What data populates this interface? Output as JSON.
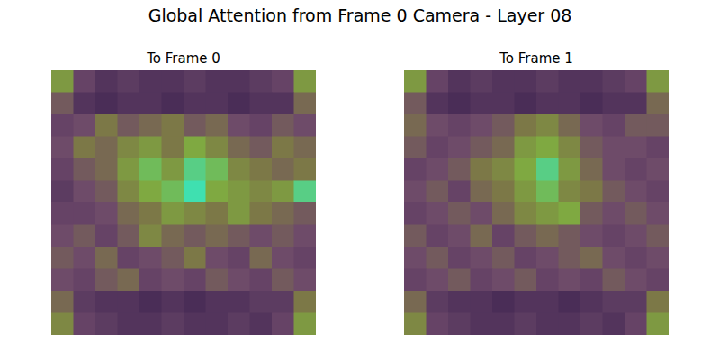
{
  "chart_data": {
    "type": "heatmap",
    "title": "Global Attention from Frame 0 Camera - Layer 08",
    "tick_labels": false,
    "panels": [
      {
        "title": "To Frame 0",
        "cells": [
          [
            0.6,
            0.3,
            0.2,
            0.25,
            0.2,
            0.2,
            0.25,
            0.2,
            0.2,
            0.25,
            0.3,
            0.6
          ],
          [
            0.4,
            0.2,
            0.15,
            0.2,
            0.2,
            0.15,
            0.2,
            0.2,
            0.15,
            0.2,
            0.2,
            0.45
          ],
          [
            0.3,
            0.35,
            0.5,
            0.4,
            0.45,
            0.5,
            0.4,
            0.45,
            0.35,
            0.3,
            0.4,
            0.35
          ],
          [
            0.35,
            0.5,
            0.45,
            0.55,
            0.6,
            0.5,
            0.65,
            0.55,
            0.45,
            0.4,
            0.5,
            0.45
          ],
          [
            0.3,
            0.4,
            0.45,
            0.6,
            0.7,
            0.6,
            0.75,
            0.7,
            0.55,
            0.5,
            0.45,
            0.5
          ],
          [
            0.25,
            0.35,
            0.4,
            0.55,
            0.65,
            0.7,
            0.8,
            0.65,
            0.6,
            0.55,
            0.6,
            0.75
          ],
          [
            0.3,
            0.3,
            0.35,
            0.45,
            0.5,
            0.6,
            0.55,
            0.5,
            0.6,
            0.5,
            0.45,
            0.4
          ],
          [
            0.35,
            0.4,
            0.3,
            0.4,
            0.55,
            0.45,
            0.4,
            0.45,
            0.4,
            0.35,
            0.4,
            0.35
          ],
          [
            0.4,
            0.35,
            0.45,
            0.3,
            0.35,
            0.4,
            0.5,
            0.35,
            0.3,
            0.45,
            0.35,
            0.3
          ],
          [
            0.35,
            0.3,
            0.4,
            0.45,
            0.3,
            0.35,
            0.3,
            0.4,
            0.35,
            0.3,
            0.4,
            0.35
          ],
          [
            0.45,
            0.25,
            0.2,
            0.2,
            0.15,
            0.2,
            0.15,
            0.2,
            0.2,
            0.25,
            0.25,
            0.5
          ],
          [
            0.55,
            0.3,
            0.25,
            0.2,
            0.2,
            0.25,
            0.2,
            0.2,
            0.25,
            0.2,
            0.3,
            0.6
          ]
        ]
      },
      {
        "title": "To Frame 1",
        "cells": [
          [
            0.6,
            0.3,
            0.2,
            0.25,
            0.2,
            0.2,
            0.25,
            0.2,
            0.2,
            0.25,
            0.3,
            0.6
          ],
          [
            0.4,
            0.2,
            0.15,
            0.2,
            0.2,
            0.15,
            0.2,
            0.2,
            0.15,
            0.2,
            0.2,
            0.45
          ],
          [
            0.45,
            0.35,
            0.3,
            0.35,
            0.4,
            0.5,
            0.55,
            0.45,
            0.35,
            0.3,
            0.4,
            0.4
          ],
          [
            0.4,
            0.3,
            0.35,
            0.4,
            0.45,
            0.6,
            0.65,
            0.55,
            0.4,
            0.35,
            0.35,
            0.3
          ],
          [
            0.3,
            0.35,
            0.4,
            0.5,
            0.55,
            0.65,
            0.75,
            0.6,
            0.45,
            0.35,
            0.3,
            0.35
          ],
          [
            0.35,
            0.4,
            0.3,
            0.45,
            0.5,
            0.6,
            0.7,
            0.55,
            0.5,
            0.4,
            0.35,
            0.3
          ],
          [
            0.3,
            0.35,
            0.4,
            0.35,
            0.45,
            0.55,
            0.6,
            0.65,
            0.4,
            0.35,
            0.4,
            0.35
          ],
          [
            0.4,
            0.3,
            0.35,
            0.45,
            0.3,
            0.4,
            0.45,
            0.4,
            0.35,
            0.3,
            0.35,
            0.4
          ],
          [
            0.35,
            0.4,
            0.3,
            0.35,
            0.4,
            0.3,
            0.35,
            0.4,
            0.45,
            0.35,
            0.3,
            0.35
          ],
          [
            0.3,
            0.35,
            0.4,
            0.3,
            0.35,
            0.4,
            0.3,
            0.35,
            0.3,
            0.4,
            0.35,
            0.3
          ],
          [
            0.45,
            0.25,
            0.2,
            0.2,
            0.15,
            0.2,
            0.2,
            0.15,
            0.2,
            0.25,
            0.25,
            0.5
          ],
          [
            0.55,
            0.3,
            0.25,
            0.2,
            0.2,
            0.25,
            0.2,
            0.2,
            0.25,
            0.2,
            0.3,
            0.6
          ]
        ]
      }
    ]
  }
}
